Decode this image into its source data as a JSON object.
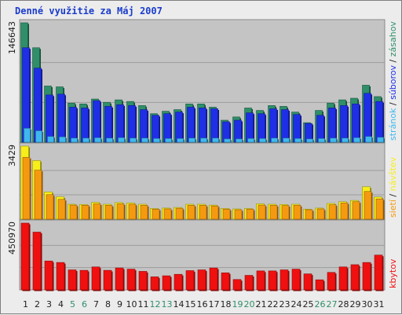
{
  "title": "Denné využitie za Máj 2007",
  "colors": {
    "zasahov": "#2f8f6a",
    "suborov": "#1f2fe6",
    "stran": "#40b8ef",
    "navstev": "#f7ee1a",
    "sieti": "#f59a10",
    "kbytov": "#f01010",
    "weekend_day": "#2f8f6a",
    "weekday": "#202020",
    "separator": "#202020"
  },
  "chart_data": [
    {
      "type": "bar",
      "categories": [
        "1",
        "2",
        "3",
        "4",
        "5",
        "6",
        "7",
        "8",
        "9",
        "10",
        "11",
        "12",
        "13",
        "14",
        "15",
        "16",
        "17",
        "18",
        "19",
        "20",
        "21",
        "22",
        "23",
        "24",
        "25",
        "26",
        "27",
        "28",
        "29",
        "30",
        "31"
      ],
      "weekend_categories": [
        "5",
        "6",
        "12",
        "13",
        "19",
        "20",
        "26",
        "27"
      ],
      "ymax_label": "146643",
      "ylim": [
        0,
        146643
      ],
      "ylabel_parts": [
        {
          "text": "stránok",
          "color_key": "stran"
        },
        {
          "text": " / ",
          "color_key": "separator"
        },
        {
          "text": "súborov",
          "color_key": "suborov"
        },
        {
          "text": " / ",
          "color_key": "separator"
        },
        {
          "text": "zásahov",
          "color_key": "zasahov"
        }
      ],
      "series": [
        {
          "name": "zásahov",
          "color_key": "zasahov",
          "values": [
            146643,
            116000,
            69000,
            68000,
            48000,
            47000,
            53000,
            49000,
            52000,
            50000,
            45000,
            35000,
            38000,
            40000,
            47000,
            47000,
            43000,
            27000,
            31000,
            42000,
            39000,
            45000,
            44000,
            37000,
            24000,
            39000,
            48000,
            52000,
            54000,
            70000,
            56000
          ]
        },
        {
          "name": "súborov",
          "color_key": "suborov",
          "values": [
            116000,
            91000,
            58000,
            59000,
            43000,
            42000,
            51000,
            44000,
            46000,
            45000,
            40000,
            33000,
            35000,
            37000,
            43000,
            42000,
            41000,
            25000,
            27000,
            36000,
            35000,
            41000,
            40000,
            34000,
            23000,
            33000,
            42000,
            45000,
            47000,
            60000,
            50000
          ]
        },
        {
          "name": "stránok",
          "color_key": "stran",
          "values": [
            17000,
            14000,
            7000,
            6500,
            5000,
            5000,
            5500,
            5000,
            5500,
            5000,
            5000,
            4500,
            4500,
            4500,
            5000,
            5000,
            5000,
            4000,
            4000,
            4500,
            4500,
            5000,
            5000,
            4500,
            4000,
            4500,
            5000,
            5000,
            5500,
            7000,
            6000
          ]
        }
      ]
    },
    {
      "type": "bar",
      "categories": [
        "1",
        "2",
        "3",
        "4",
        "5",
        "6",
        "7",
        "8",
        "9",
        "10",
        "11",
        "12",
        "13",
        "14",
        "15",
        "16",
        "17",
        "18",
        "19",
        "20",
        "21",
        "22",
        "23",
        "24",
        "25",
        "26",
        "27",
        "28",
        "29",
        "30",
        "31"
      ],
      "ymax_label": "3429",
      "ylim": [
        0,
        3429
      ],
      "ylabel_parts": [
        {
          "text": "sietí",
          "color_key": "sieti"
        },
        {
          "text": " / ",
          "color_key": "separator"
        },
        {
          "text": "návštev",
          "color_key": "navstev"
        }
      ],
      "series": [
        {
          "name": "návštev",
          "color_key": "navstev",
          "values": [
            3429,
            2750,
            1280,
            1050,
            700,
            690,
            790,
            700,
            780,
            760,
            700,
            500,
            520,
            550,
            700,
            700,
            660,
            500,
            480,
            500,
            720,
            700,
            690,
            700,
            470,
            520,
            740,
            820,
            880,
            1520,
            1040
          ]
        },
        {
          "name": "sietí",
          "color_key": "sieti",
          "values": [
            2900,
            2300,
            1150,
            930,
            660,
            650,
            720,
            650,
            720,
            700,
            650,
            470,
            480,
            510,
            650,
            650,
            620,
            470,
            440,
            470,
            660,
            650,
            640,
            650,
            440,
            480,
            680,
            760,
            820,
            1300,
            950
          ]
        }
      ]
    },
    {
      "type": "bar",
      "categories": [
        "1",
        "2",
        "3",
        "4",
        "5",
        "6",
        "7",
        "8",
        "9",
        "10",
        "11",
        "12",
        "13",
        "14",
        "15",
        "16",
        "17",
        "18",
        "19",
        "20",
        "21",
        "22",
        "23",
        "24",
        "25",
        "26",
        "27",
        "28",
        "29",
        "30",
        "31"
      ],
      "ymax_label": "450970",
      "ylim": [
        0,
        450970
      ],
      "ylabel_parts": [
        {
          "text": "kbytov",
          "color_key": "kbytov"
        }
      ],
      "series": [
        {
          "name": "kbytov",
          "color_key": "kbytov",
          "values": [
            450970,
            390000,
            195000,
            185000,
            135000,
            132000,
            155000,
            132000,
            148000,
            140000,
            125000,
            88000,
            95000,
            105000,
            130000,
            135000,
            148000,
            115000,
            70000,
            98000,
            128000,
            128000,
            135000,
            140000,
            108000,
            68000,
            118000,
            155000,
            170000,
            185000,
            235000
          ]
        }
      ]
    }
  ]
}
